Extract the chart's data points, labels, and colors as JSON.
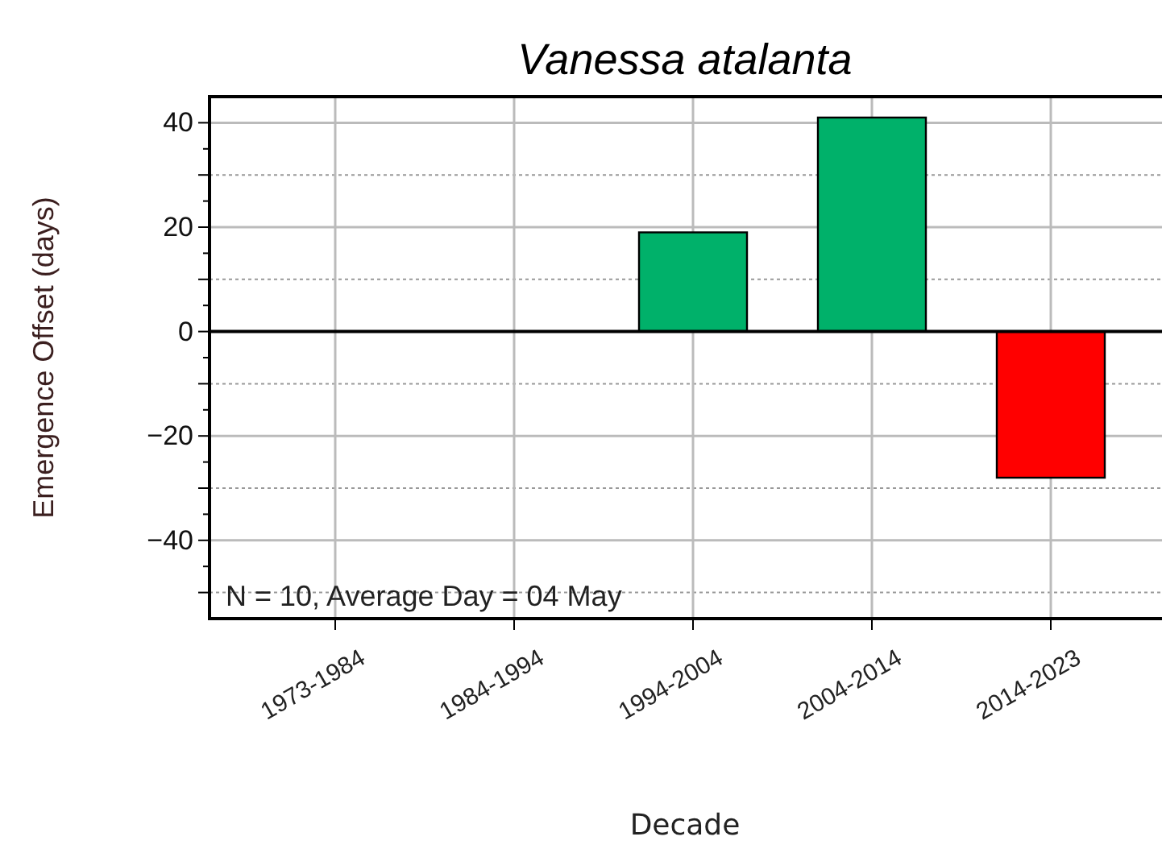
{
  "chart_data": {
    "type": "bar",
    "title": "Vanessa atalanta",
    "xlabel": "Decade",
    "ylabel": "Emergence Offset (days)",
    "categories": [
      "1973-1984",
      "1984-1994",
      "1994-2004",
      "2004-2014",
      "2014-2023"
    ],
    "values": [
      null,
      null,
      19,
      41,
      -28
    ],
    "colors": [
      null,
      null,
      "#00b16a",
      "#00b16a",
      "#ff0000"
    ],
    "ylim": [
      -55,
      45
    ],
    "yticks": [
      {
        "value": -50,
        "label": null
      },
      -40,
      {
        "value": -30,
        "label": null
      },
      -20,
      {
        "value": -10,
        "label": null
      },
      0,
      {
        "value": 10,
        "label": null
      },
      20,
      {
        "value": 30,
        "label": null
      },
      40
    ],
    "grid": true,
    "annotations": [
      "N = 10, Average Day = 04 May"
    ]
  }
}
